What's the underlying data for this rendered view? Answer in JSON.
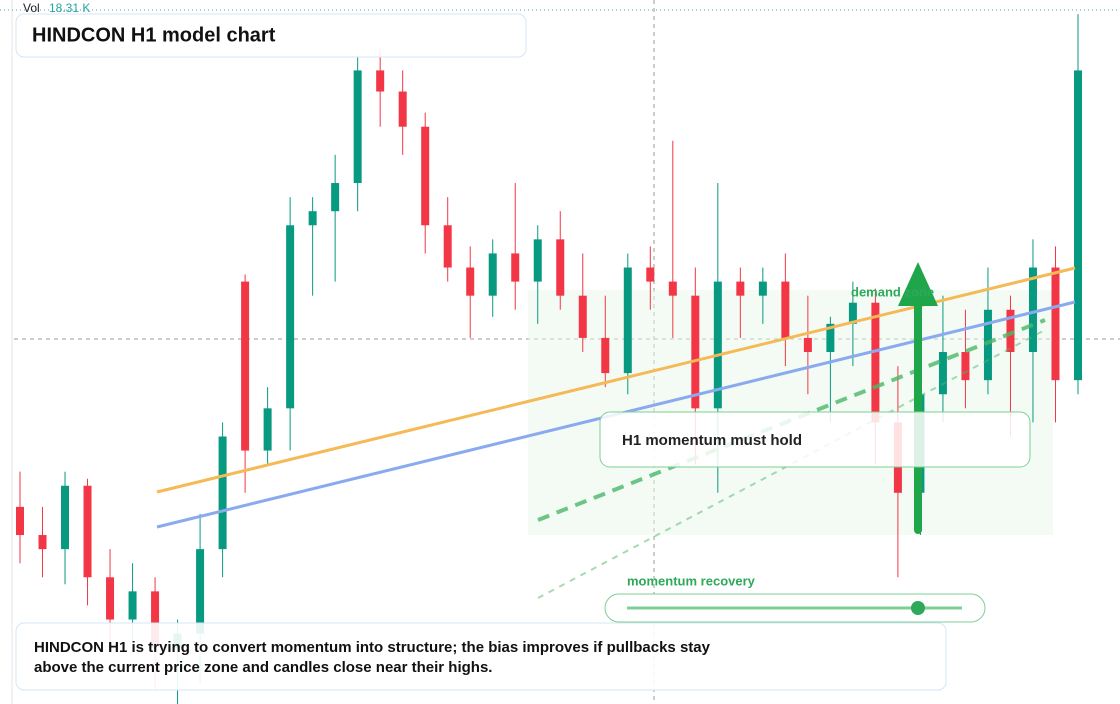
{
  "header": {
    "title": "HINDCON H1 model chart"
  },
  "volume": {
    "label": "Vol",
    "value_label": "18.31 K"
  },
  "annotations": {
    "demand_zone": "demand zone",
    "momentum_note": "H1 momentum must hold",
    "recovery_label": "momentum recovery"
  },
  "summary": {
    "lines": [
      "HINDCON H1 is trying to convert momentum into structure; the bias improves if pullbacks stay",
      "above the current price zone and candles close near their highs."
    ]
  },
  "chart_data": {
    "type": "candlestick",
    "up_color": "#089981",
    "down_color": "#f23645",
    "ylim": [
      0,
      100
    ],
    "open": [
      28,
      24,
      22,
      31,
      18,
      12,
      16,
      8,
      10,
      22,
      60,
      36,
      42,
      68,
      70,
      74,
      90,
      87,
      82,
      68,
      62,
      58,
      64,
      60,
      66,
      58,
      52,
      47,
      62,
      60,
      58,
      42,
      60,
      58,
      60,
      52,
      50,
      54,
      57,
      40,
      30,
      44,
      50,
      46,
      56,
      50,
      62,
      46
    ],
    "high": [
      33,
      28,
      33,
      32,
      22,
      20,
      18,
      12,
      27,
      40,
      61,
      45,
      72,
      72,
      78,
      92,
      93,
      90,
      84,
      72,
      65,
      66,
      74,
      68,
      70,
      64,
      58,
      64,
      65,
      80,
      62,
      74,
      62,
      62,
      64,
      58,
      55,
      60,
      59,
      48,
      46,
      58,
      56,
      62,
      58,
      66,
      65,
      98
    ],
    "low": [
      20,
      18,
      17,
      14,
      8,
      9,
      2,
      0,
      3,
      18,
      30,
      34,
      36,
      58,
      60,
      70,
      82,
      78,
      64,
      60,
      52,
      55,
      56,
      54,
      56,
      50,
      45,
      44,
      56,
      52,
      34,
      30,
      52,
      54,
      48,
      44,
      40,
      48,
      34,
      18,
      24,
      40,
      42,
      44,
      38,
      40,
      40,
      44
    ],
    "close": [
      24,
      22,
      31,
      18,
      12,
      16,
      8,
      10,
      22,
      38,
      36,
      42,
      68,
      70,
      74,
      90,
      87,
      82,
      68,
      62,
      58,
      64,
      60,
      66,
      58,
      52,
      47,
      62,
      60,
      58,
      42,
      60,
      58,
      60,
      52,
      50,
      54,
      57,
      40,
      30,
      44,
      50,
      46,
      56,
      50,
      62,
      46,
      90
    ]
  }
}
